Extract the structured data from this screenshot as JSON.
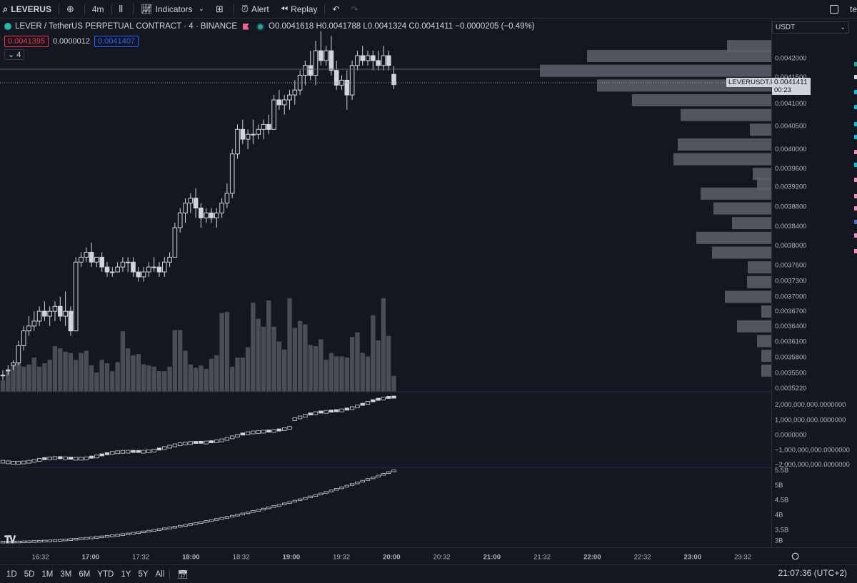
{
  "toolbar": {
    "symbol": "LEVERUS",
    "interval": "4m",
    "indicators": "Indicators",
    "alert": "Alert",
    "replay": "Replay",
    "right_text": "te"
  },
  "legend": {
    "title": "LEVER / TetherUS PERPETUAL CONTRACT · 4 · BINANCE",
    "ohlc": "O0.0041618 H0.0041788 L0.0041324 C0.0041411 −0.0000205 (−0.49%)",
    "bid": "0.0041395",
    "spread": "0.0000012",
    "ask": "0.0041407",
    "collapse": "4"
  },
  "price_scale": {
    "currency": "USDT",
    "main_ticks": [
      "0.0042000",
      "0.0041500",
      "0.0041000",
      "0.0040500",
      "0.0040000",
      "0.0039600",
      "0.0039200",
      "0.0038800",
      "0.0038400",
      "0.0038000",
      "0.0037600",
      "0.0037300",
      "0.0037000",
      "0.0036700",
      "0.0036400",
      "0.0036100",
      "0.0035800",
      "0.0035500",
      "0.0035220"
    ],
    "pane2_ticks": [
      "2,000,000,000.0000000",
      "1,000,000,000.0000000",
      "0.0000000",
      "−1,000,000,000.0000000",
      "−2,000,000,000.0000000"
    ],
    "pane3_ticks": [
      "5.5B",
      "5B",
      "4.5B",
      "4B",
      "3.5B",
      "3B"
    ],
    "symbol_label": "LEVERUSDT.P",
    "last_price": "0.0041411",
    "countdown": "00:23"
  },
  "time_axis": {
    "labels": [
      {
        "t": "16:32",
        "bold": false
      },
      {
        "t": "17:00",
        "bold": true
      },
      {
        "t": "17:32",
        "bold": false
      },
      {
        "t": "18:00",
        "bold": true
      },
      {
        "t": "18:32",
        "bold": false
      },
      {
        "t": "19:00",
        "bold": true
      },
      {
        "t": "19:32",
        "bold": false
      },
      {
        "t": "20:00",
        "bold": true
      },
      {
        "t": "20:32",
        "bold": false
      },
      {
        "t": "21:00",
        "bold": true
      },
      {
        "t": "21:32",
        "bold": false
      },
      {
        "t": "22:00",
        "bold": true
      },
      {
        "t": "22:32",
        "bold": false
      },
      {
        "t": "23:00",
        "bold": true
      },
      {
        "t": "23:32",
        "bold": false
      }
    ]
  },
  "bottom_bar": {
    "ranges": [
      "1D",
      "5D",
      "1M",
      "3M",
      "6M",
      "YTD",
      "1Y",
      "5Y",
      "All"
    ],
    "clock": "21:07:36 (UTC+2)"
  },
  "colors": {
    "bg": "#131722",
    "candle": "#d1d4dc",
    "volume": "#4a4d57",
    "profile": "#5d606b"
  },
  "chart_data": [
    {
      "type": "candlestick",
      "title": "",
      "note_candles": [
        [
          0.00355,
          0.00356,
          0.00354,
          0.00355
        ],
        [
          0.00356,
          0.00357,
          0.00355,
          0.00356
        ],
        [
          0.00357,
          0.00358,
          0.00356,
          0.003575
        ],
        [
          0.003575,
          0.00362,
          0.00357,
          0.00361
        ],
        [
          0.00361,
          0.00365,
          0.0036,
          0.00364
        ],
        [
          0.00364,
          0.00367,
          0.00363,
          0.00365
        ],
        [
          0.00365,
          0.00368,
          0.00364,
          0.00366
        ],
        [
          0.00366,
          0.00369,
          0.00365,
          0.00368
        ],
        [
          0.00368,
          0.0037,
          0.00366,
          0.00367
        ],
        [
          0.00367,
          0.00369,
          0.00365,
          0.00368
        ],
        [
          0.00368,
          0.0037,
          0.00366,
          0.00369
        ],
        [
          0.00369,
          0.00371,
          0.00366,
          0.00367
        ],
        [
          0.00367,
          0.00372,
          0.00365,
          0.00368
        ],
        [
          0.00368,
          0.00369,
          0.00363,
          0.00364
        ],
        [
          0.00364,
          0.00379,
          0.00364,
          0.00378
        ],
        [
          0.00378,
          0.0038,
          0.00377,
          0.00379
        ],
        [
          0.00379,
          0.00381,
          0.00378,
          0.0038
        ],
        [
          0.0038,
          0.00382,
          0.00377,
          0.00378
        ],
        [
          0.00378,
          0.00379,
          0.00377,
          0.00379
        ],
        [
          0.00379,
          0.0038,
          0.00376,
          0.00377
        ],
        [
          0.00377,
          0.00378,
          0.00375,
          0.00376
        ],
        [
          0.00376,
          0.00377,
          0.00375,
          0.00376
        ],
        [
          0.00376,
          0.00378,
          0.00376,
          0.00377
        ],
        [
          0.00377,
          0.00379,
          0.00376,
          0.00378
        ],
        [
          0.00378,
          0.00379,
          0.00376,
          0.00378
        ],
        [
          0.00378,
          0.00379,
          0.00375,
          0.00376
        ],
        [
          0.00376,
          0.00377,
          0.00374,
          0.00375
        ],
        [
          0.00375,
          0.00377,
          0.00374,
          0.00376
        ],
        [
          0.00376,
          0.00378,
          0.00375,
          0.00377
        ],
        [
          0.00377,
          0.00379,
          0.00376,
          0.00377
        ],
        [
          0.00377,
          0.00378,
          0.00375,
          0.00376
        ],
        [
          0.00376,
          0.00379,
          0.00375,
          0.00378
        ],
        [
          0.00378,
          0.0038,
          0.00377,
          0.00379
        ],
        [
          0.00379,
          0.00386,
          0.00379,
          0.00385
        ],
        [
          0.00385,
          0.00389,
          0.00384,
          0.00388
        ],
        [
          0.00388,
          0.00391,
          0.00386,
          0.0039
        ],
        [
          0.0039,
          0.00392,
          0.00388,
          0.00391
        ],
        [
          0.00391,
          0.00393,
          0.00387,
          0.00389
        ],
        [
          0.00389,
          0.0039,
          0.00385,
          0.00387
        ],
        [
          0.00387,
          0.00389,
          0.00386,
          0.00388
        ],
        [
          0.00388,
          0.00389,
          0.00386,
          0.00387
        ],
        [
          0.00387,
          0.00389,
          0.00385,
          0.00388
        ],
        [
          0.00388,
          0.00391,
          0.00387,
          0.0039
        ],
        [
          0.0039,
          0.00394,
          0.00389,
          0.00392
        ],
        [
          0.00392,
          0.00401,
          0.00391,
          0.004
        ],
        [
          0.004,
          0.00406,
          0.00399,
          0.00405
        ],
        [
          0.00405,
          0.00407,
          0.00402,
          0.00403
        ],
        [
          0.00403,
          0.00405,
          0.00401,
          0.00404
        ],
        [
          0.00404,
          0.00407,
          0.00402,
          0.00404
        ],
        [
          0.00404,
          0.00406,
          0.00403,
          0.00405
        ],
        [
          0.00405,
          0.00407,
          0.00403,
          0.00406
        ],
        [
          0.00406,
          0.00408,
          0.00404,
          0.00405
        ],
        [
          0.00405,
          0.00412,
          0.00405,
          0.00411
        ],
        [
          0.00411,
          0.00413,
          0.00409,
          0.0041
        ],
        [
          0.0041,
          0.00412,
          0.00408,
          0.00411
        ],
        [
          0.00411,
          0.00413,
          0.00409,
          0.00412
        ],
        [
          0.00412,
          0.00415,
          0.0041,
          0.00413
        ],
        [
          0.00413,
          0.00417,
          0.00412,
          0.00416
        ],
        [
          0.00416,
          0.00419,
          0.00414,
          0.00418
        ],
        [
          0.00418,
          0.00421,
          0.00415,
          0.00416
        ],
        [
          0.00416,
          0.00423,
          0.00414,
          0.00421
        ],
        [
          0.00421,
          0.00425,
          0.00418,
          0.00419
        ],
        [
          0.00419,
          0.00422,
          0.00418,
          0.00421
        ],
        [
          0.00421,
          0.00424,
          0.00416,
          0.00417
        ],
        [
          0.00417,
          0.00419,
          0.00413,
          0.00414
        ],
        [
          0.00414,
          0.00416,
          0.00413,
          0.00415
        ],
        [
          0.00415,
          0.00417,
          0.00409,
          0.00412
        ],
        [
          0.00412,
          0.00419,
          0.00411,
          0.00418
        ],
        [
          0.00418,
          0.00421,
          0.00417,
          0.0042
        ],
        [
          0.0042,
          0.00422,
          0.00418,
          0.00419
        ],
        [
          0.00419,
          0.00421,
          0.00418,
          0.0042
        ],
        [
          0.0042,
          0.00421,
          0.00417,
          0.00419
        ],
        [
          0.00419,
          0.00421,
          0.00417,
          0.00418
        ],
        [
          0.00418,
          0.00422,
          0.00417,
          0.0042
        ],
        [
          0.0042,
          0.00421,
          0.00417,
          0.00418
        ],
        [
          0.004162,
          0.004179,
          0.004132,
          0.004141
        ]
      ],
      "volumes": [
        1,
        2,
        2.5,
        3,
        2.2,
        2.4,
        3,
        2.2,
        2.5,
        2.8,
        4,
        3.8,
        3.5,
        3.4,
        2.8,
        3.4,
        3.6,
        2.3,
        1.7,
        2.8,
        2.5,
        1.8,
        2.6,
        5.3,
        3.8,
        3.2,
        3.3,
        2.4,
        2.3,
        2.2,
        1.8,
        1.8,
        2.2,
        5.4,
        5.4,
        3.6,
        2.4,
        2.1,
        2.3,
        2.0,
        2.9,
        3.2,
        6.9,
        7.0,
        2.2,
        3.0,
        3.0,
        3.9,
        7.8,
        6.4,
        5.7,
        8.0,
        5.7,
        4.4,
        3.7,
        8.2,
        5.6,
        6.2,
        5.9,
        4.1,
        4.0,
        4.6,
        2.8,
        3.4,
        3.1,
        3.1,
        3.0,
        4.8,
        5.2,
        3.4,
        3.1,
        6.7,
        4.5,
        8.2,
        4.9,
        1.4
      ],
      "volume_profile": [
        {
          "price": 0.00422,
          "width": 62
        },
        {
          "price": 0.0042,
          "width": 258
        },
        {
          "price": 0.00417,
          "width": 324
        },
        {
          "price": 0.00414,
          "width": 244
        },
        {
          "price": 0.00411,
          "width": 195
        },
        {
          "price": 0.00408,
          "width": 127
        },
        {
          "price": 0.00405,
          "width": 30
        },
        {
          "price": 0.00402,
          "width": 131
        },
        {
          "price": 0.00399,
          "width": 137
        },
        {
          "price": 0.00396,
          "width": 26
        },
        {
          "price": 0.00394,
          "width": 20
        },
        {
          "price": 0.00392,
          "width": 99
        },
        {
          "price": 0.00389,
          "width": 81
        },
        {
          "price": 0.00386,
          "width": 55
        },
        {
          "price": 0.00383,
          "width": 105
        },
        {
          "price": 0.0038,
          "width": 83
        },
        {
          "price": 0.00377,
          "width": 33
        },
        {
          "price": 0.00374,
          "width": 34
        },
        {
          "price": 0.00371,
          "width": 65
        },
        {
          "price": 0.00368,
          "width": 14
        },
        {
          "price": 0.00365,
          "width": 48
        },
        {
          "price": 0.00362,
          "width": 20
        },
        {
          "price": 0.00359,
          "width": 14
        },
        {
          "price": 0.00356,
          "width": 14
        }
      ]
    }
  ]
}
